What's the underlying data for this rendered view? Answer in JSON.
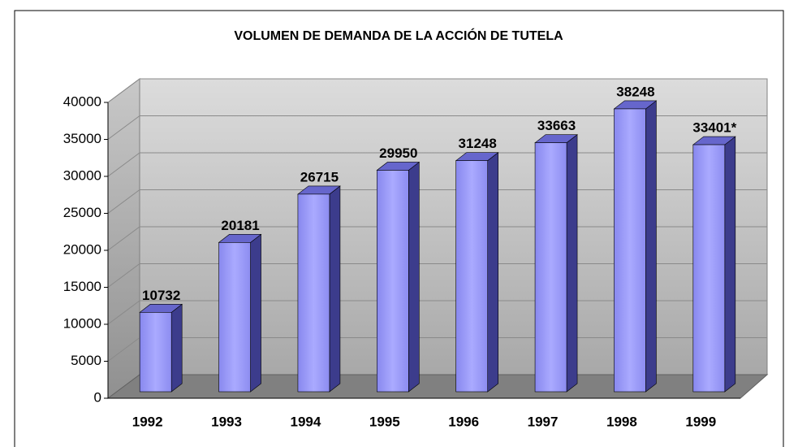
{
  "chart_data": {
    "type": "bar3d",
    "title": "VOLUMEN DE DEMANDA DE LA ACCIÓN DE TUTELA",
    "categories": [
      "1992",
      "1993",
      "1994",
      "1995",
      "1996",
      "1997",
      "1998",
      "1999"
    ],
    "values": [
      10732,
      20181,
      26715,
      29950,
      31248,
      33663,
      38248,
      33401
    ],
    "value_labels": [
      "10732",
      "20181",
      "26715",
      "29950",
      "31248",
      "33663",
      "38248",
      "33401*"
    ],
    "color": "#9999ff",
    "ylim": [
      0,
      40000
    ],
    "yticks": [
      0,
      5000,
      10000,
      15000,
      20000,
      25000,
      30000,
      35000,
      40000
    ],
    "grid": true
  }
}
